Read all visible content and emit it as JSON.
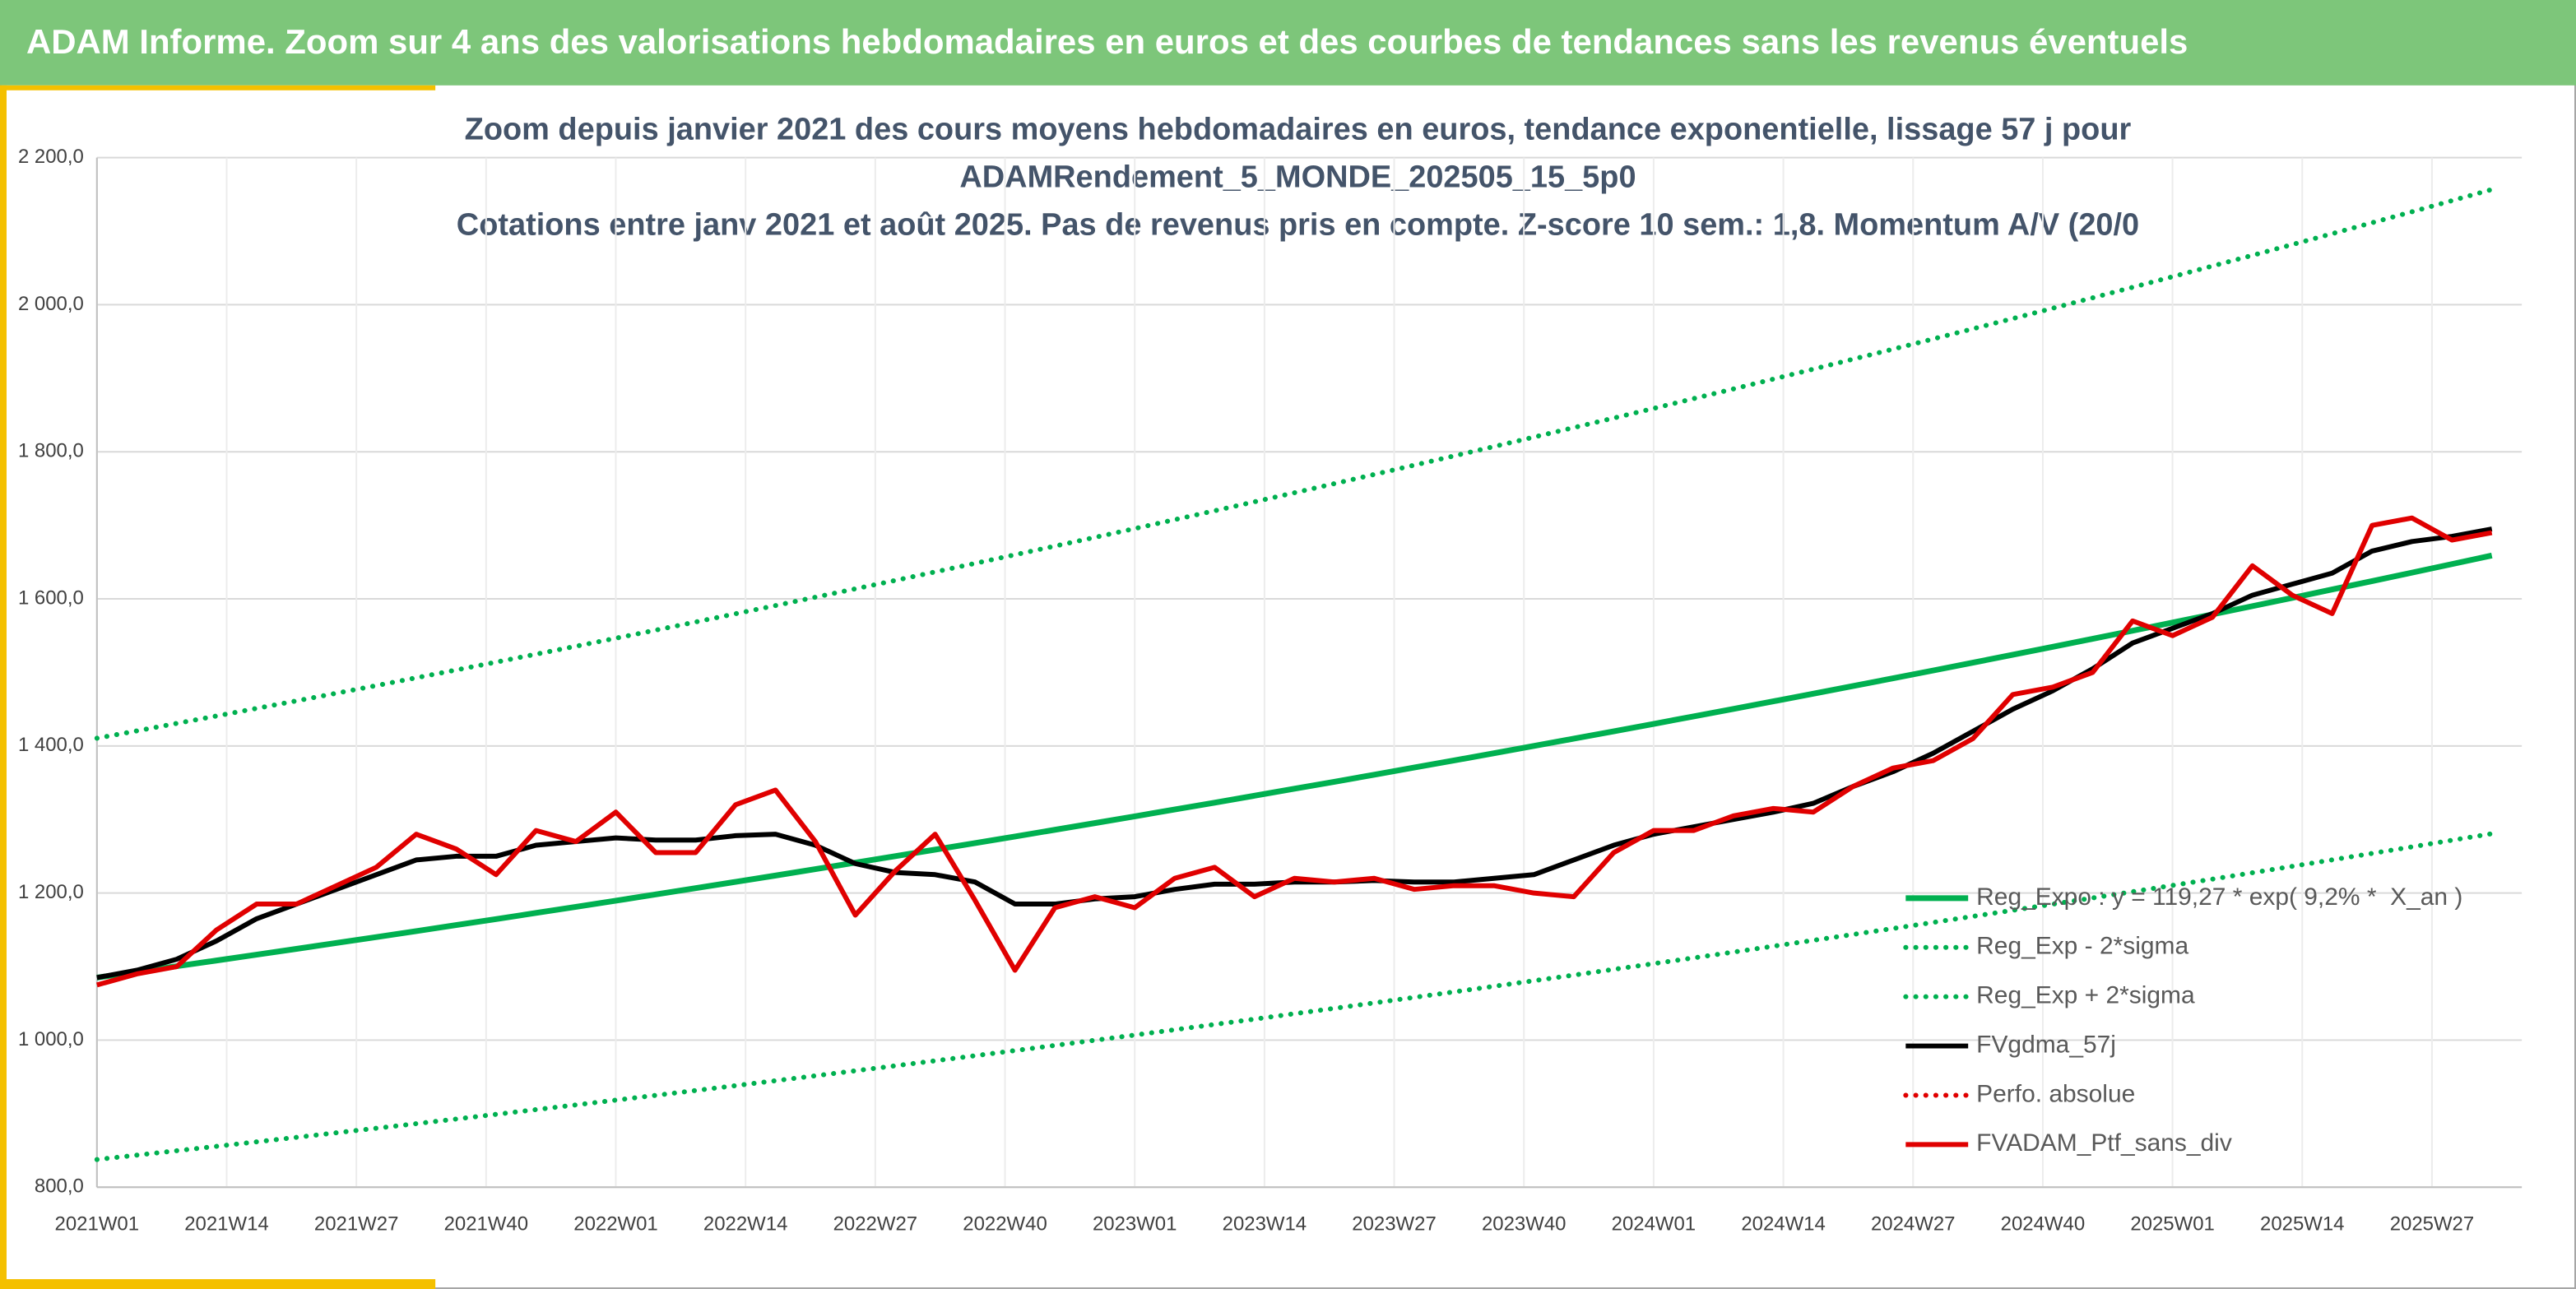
{
  "header": {
    "title": "ADAM Informe. Zoom sur 4 ans des valorisations hebdomadaires en euros et des courbes de tendances sans les revenus éventuels"
  },
  "chart_data": {
    "type": "line",
    "title": [
      "Zoom depuis janvier 2021 des cours moyens hebdomadaires en euros, tendance exponentielle, lissage 57 j pour",
      "ADAMRendement_5_MONDE_202505_15_5p0",
      "Cotations entre janv 2021 et août 2025. Pas de revenus pris en compte. Z-score 10 sem.: 1,8. Momentum A/V (20/0"
    ],
    "x": [
      0,
      4,
      8,
      12,
      16,
      20,
      24,
      28,
      32,
      36,
      40,
      44,
      48,
      52,
      56,
      60,
      64,
      68,
      72,
      76,
      80,
      84,
      88,
      92,
      96,
      100,
      104,
      108,
      112,
      116,
      120,
      124,
      128,
      132,
      136,
      140,
      144,
      148,
      152,
      156,
      160,
      164,
      168,
      172,
      176,
      180,
      184,
      188,
      192,
      196,
      200,
      204,
      208,
      212,
      216,
      220,
      224,
      228,
      232,
      236,
      240
    ],
    "xlim": [
      0,
      243
    ],
    "xticks": [
      {
        "value": 0,
        "label": "2021W01"
      },
      {
        "value": 13,
        "label": "2021W14"
      },
      {
        "value": 26,
        "label": "2021W27"
      },
      {
        "value": 39,
        "label": "2021W40"
      },
      {
        "value": 52,
        "label": "2022W01"
      },
      {
        "value": 65,
        "label": "2022W14"
      },
      {
        "value": 78,
        "label": "2022W27"
      },
      {
        "value": 91,
        "label": "2022W40"
      },
      {
        "value": 104,
        "label": "2023W01"
      },
      {
        "value": 117,
        "label": "2023W14"
      },
      {
        "value": 130,
        "label": "2023W27"
      },
      {
        "value": 143,
        "label": "2023W40"
      },
      {
        "value": 156,
        "label": "2024W01"
      },
      {
        "value": 169,
        "label": "2024W14"
      },
      {
        "value": 182,
        "label": "2024W27"
      },
      {
        "value": 195,
        "label": "2024W40"
      },
      {
        "value": 208,
        "label": "2025W01"
      },
      {
        "value": 221,
        "label": "2025W14"
      },
      {
        "value": 234,
        "label": "2025W27"
      }
    ],
    "ylim": [
      800,
      2200
    ],
    "yticks": [
      {
        "value": 800,
        "label": "800,0"
      },
      {
        "value": 1000,
        "label": "1 000,0"
      },
      {
        "value": 1200,
        "label": "1 200,0"
      },
      {
        "value": 1400,
        "label": "1 400,0"
      },
      {
        "value": 1600,
        "label": "1 600,0"
      },
      {
        "value": 1800,
        "label": "1 800,0"
      },
      {
        "value": 2000,
        "label": "2 000,0"
      },
      {
        "value": 2200,
        "label": "2 200,0"
      }
    ],
    "grid": true,
    "legend": "lower right",
    "series": [
      {
        "name": "Reg_Expo : y = 119,27 * exp( 9,2% *  X_an )",
        "color": "#00b050",
        "style": "solid",
        "values": [
          1085.0,
          1092.7,
          1100.5,
          1108.3,
          1116.2,
          1124.1,
          1132.1,
          1140.1,
          1148.2,
          1156.4,
          1164.6,
          1172.9,
          1181.2,
          1189.6,
          1198.1,
          1206.6,
          1215.2,
          1223.8,
          1232.5,
          1241.3,
          1250.1,
          1259.0,
          1267.9,
          1276.9,
          1286.0,
          1295.1,
          1304.3,
          1313.6,
          1322.9,
          1332.3,
          1341.8,
          1351.3,
          1360.9,
          1370.6,
          1380.3,
          1390.1,
          1400.0,
          1409.9,
          1419.9,
          1430.0,
          1440.2,
          1450.4,
          1460.7,
          1471.1,
          1481.5,
          1492.0,
          1502.6,
          1513.3,
          1524.0,
          1534.8,
          1545.7,
          1556.7,
          1567.8,
          1578.9,
          1590.1,
          1601.4,
          1612.8,
          1624.2,
          1635.7,
          1647.3,
          1659.0
        ]
      },
      {
        "name": "Reg_Exp - 2*sigma",
        "color": "#00b050",
        "style": "dotted",
        "values": [
          837.6,
          843.6,
          849.6,
          855.6,
          861.7,
          867.8,
          874.0,
          880.2,
          886.4,
          892.7,
          899.1,
          905.5,
          911.9,
          918.4,
          924.9,
          931.5,
          938.1,
          944.8,
          951.5,
          958.3,
          965.1,
          971.9,
          978.8,
          985.8,
          992.8,
          999.8,
          1006.9,
          1014.1,
          1021.3,
          1028.5,
          1035.9,
          1043.2,
          1050.6,
          1058.1,
          1065.6,
          1073.2,
          1080.8,
          1088.4,
          1096.2,
          1104.0,
          1111.8,
          1119.7,
          1127.7,
          1135.7,
          1143.7,
          1151.8,
          1160.0,
          1168.3,
          1176.5,
          1184.9,
          1193.3,
          1201.8,
          1210.4,
          1218.9,
          1227.6,
          1236.3,
          1245.1,
          1253.9,
          1262.8,
          1271.8,
          1280.7
        ]
      },
      {
        "name": "Reg_Exp + 2*sigma",
        "color": "#00b050",
        "style": "dotted",
        "values": [
          1410.5,
          1420.5,
          1430.7,
          1440.8,
          1451.1,
          1461.3,
          1471.7,
          1482.1,
          1492.7,
          1503.3,
          1514.0,
          1524.8,
          1535.6,
          1546.5,
          1557.5,
          1568.6,
          1579.8,
          1590.9,
          1602.3,
          1613.7,
          1625.1,
          1636.7,
          1648.3,
          1660.0,
          1671.8,
          1683.6,
          1695.6,
          1707.7,
          1719.8,
          1732.0,
          1744.3,
          1756.7,
          1769.2,
          1781.8,
          1794.4,
          1807.1,
          1820.0,
          1832.9,
          1845.9,
          1859.0,
          1872.3,
          1885.5,
          1898.9,
          1912.4,
          1926.0,
          1939.6,
          1953.4,
          1967.3,
          1981.2,
          1995.2,
          2009.4,
          2023.7,
          2038.1,
          2052.6,
          2067.1,
          2081.8,
          2096.6,
          2111.5,
          2126.4,
          2141.5,
          2156.7
        ]
      },
      {
        "name": "FVgdma_57j",
        "color": "#000000",
        "style": "solid",
        "values": [
          1085,
          1095,
          1110,
          1135,
          1165,
          1185,
          1205,
          1225,
          1245,
          1250,
          1250,
          1265,
          1270,
          1275,
          1272,
          1272,
          1278,
          1280,
          1265,
          1240,
          1228,
          1225,
          1215,
          1185,
          1185,
          1192,
          1195,
          1205,
          1212,
          1212,
          1215,
          1215,
          1217,
          1215,
          1215,
          1220,
          1225,
          1245,
          1265,
          1280,
          1290,
          1300,
          1310,
          1322,
          1345,
          1365,
          1390,
          1420,
          1450,
          1475,
          1505,
          1540,
          1560,
          1580,
          1605,
          1620,
          1635,
          1665,
          1678,
          1685,
          1695
        ]
      },
      {
        "name": "Perfo. absolue",
        "color": "#e00000",
        "style": "dotted"
      },
      {
        "name": "FVADAM_Ptf_sans_div",
        "color": "#e00000",
        "style": "solid",
        "values": [
          1075,
          1090,
          1100,
          1150,
          1185,
          1185,
          1210,
          1235,
          1280,
          1260,
          1225,
          1285,
          1270,
          1310,
          1255,
          1255,
          1320,
          1340,
          1270,
          1170,
          1230,
          1280,
          1190,
          1095,
          1180,
          1195,
          1180,
          1220,
          1235,
          1195,
          1220,
          1215,
          1220,
          1205,
          1210,
          1210,
          1200,
          1195,
          1255,
          1285,
          1285,
          1305,
          1315,
          1310,
          1345,
          1370,
          1380,
          1410,
          1470,
          1480,
          1500,
          1570,
          1550,
          1575,
          1645,
          1605,
          1580,
          1700,
          1710,
          1680,
          1690
        ]
      }
    ]
  }
}
